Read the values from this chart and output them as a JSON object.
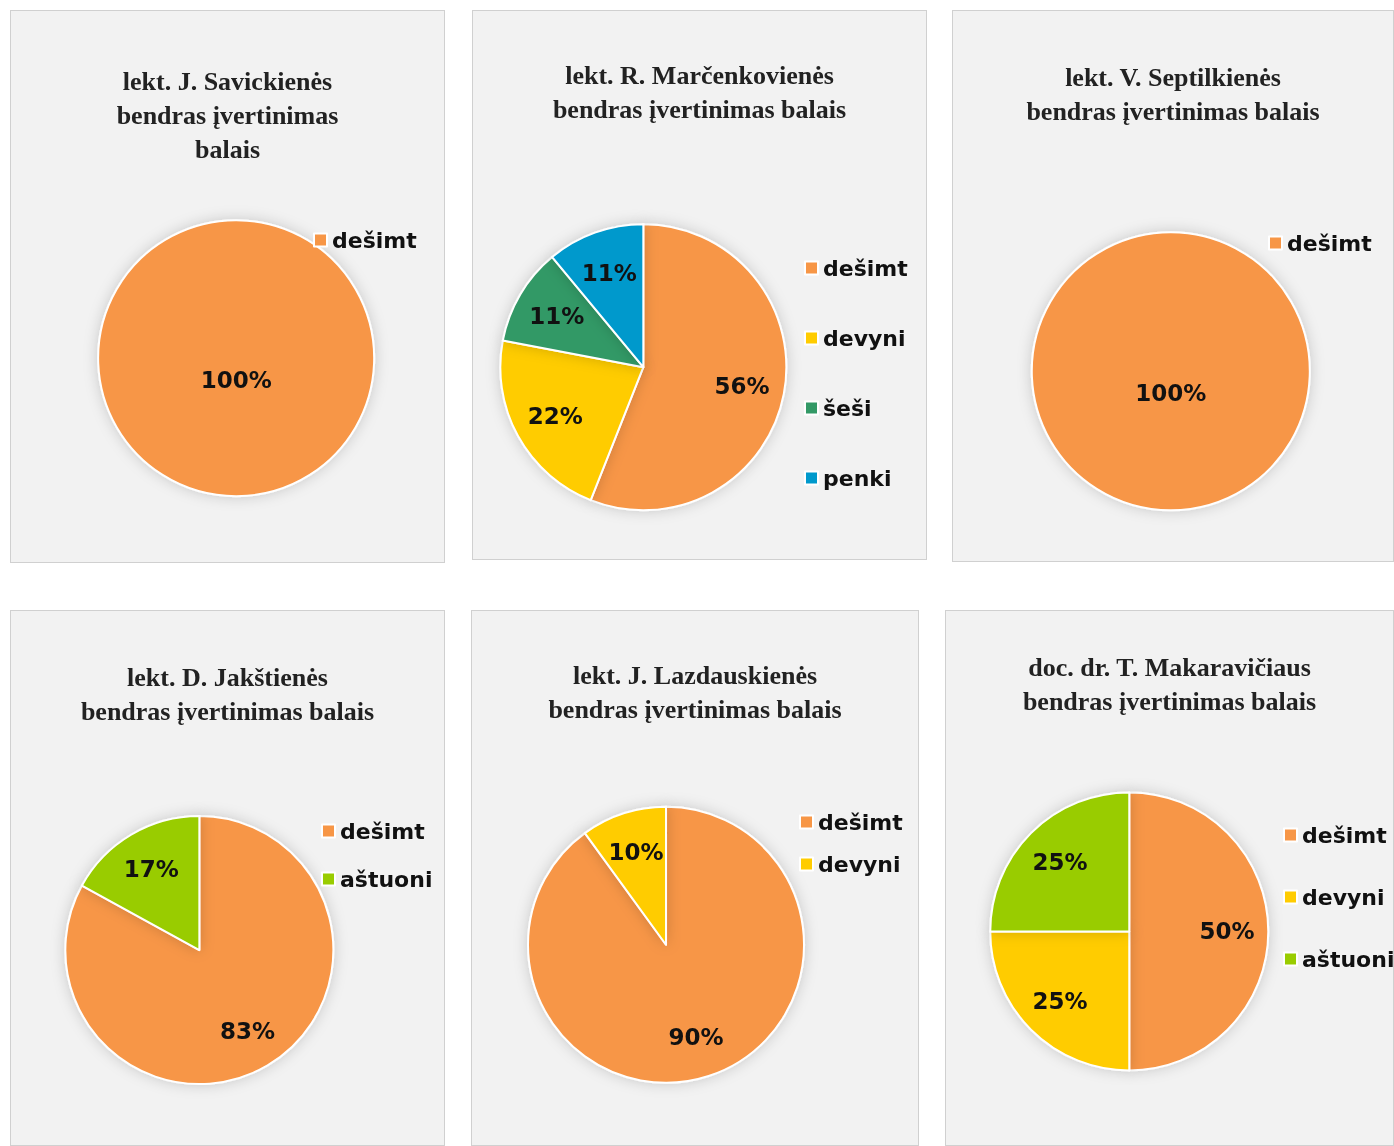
{
  "chart_data": [
    {
      "type": "pie",
      "title": "lekt. J. Savickienės\nbendras įvertinimas\nbalais",
      "categories": [
        "dešimt"
      ],
      "values": [
        100
      ],
      "colors": [
        "#f79646"
      ],
      "value_labels": [
        "100%"
      ],
      "legend": "right"
    },
    {
      "type": "pie",
      "title": "lekt. R. Marčenkovienės\nbendras įvertinimas balais",
      "categories": [
        "dešimt",
        "devyni",
        "šeši",
        "penki"
      ],
      "values": [
        56,
        22,
        11,
        11
      ],
      "colors": [
        "#f79646",
        "#ffcc00",
        "#339966",
        "#0099cc"
      ],
      "value_labels": [
        "56%",
        "22%",
        "11%",
        "11%"
      ],
      "legend": "right"
    },
    {
      "type": "pie",
      "title": "lekt. V. Septilkienės\nbendras įvertinimas balais",
      "categories": [
        "dešimt"
      ],
      "values": [
        100
      ],
      "colors": [
        "#f79646"
      ],
      "value_labels": [
        "100%"
      ],
      "legend": "right"
    },
    {
      "type": "pie",
      "title": "lekt. D. Jakštienės\nbendras įvertinimas balais",
      "categories": [
        "dešimt",
        "aštuoni"
      ],
      "values": [
        83,
        17
      ],
      "colors": [
        "#f79646",
        "#99cc00"
      ],
      "value_labels": [
        "83%",
        "17%"
      ],
      "legend": "right"
    },
    {
      "type": "pie",
      "title": "lekt. J. Lazdauskienės\nbendras įvertinimas balais",
      "categories": [
        "dešimt",
        "devyni"
      ],
      "values": [
        90,
        10
      ],
      "colors": [
        "#f79646",
        "#ffcc00"
      ],
      "value_labels": [
        "90%",
        "10%"
      ],
      "legend": "right"
    },
    {
      "type": "pie",
      "title": "doc. dr. T. Makaravičiaus\nbendras įvertinimas balais",
      "categories": [
        "dešimt",
        "devyni",
        "aštuoni"
      ],
      "values": [
        50,
        25,
        25
      ],
      "colors": [
        "#f79646",
        "#ffcc00",
        "#99cc00"
      ],
      "value_labels": [
        "50%",
        "25%",
        "25%"
      ],
      "legend": "right"
    }
  ]
}
